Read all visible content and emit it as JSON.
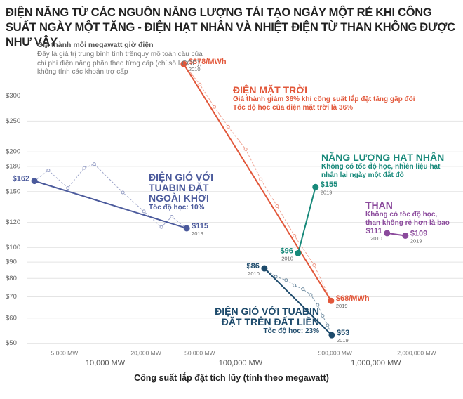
{
  "chart_data": {
    "type": "line",
    "title": "ĐIỆN NĂNG TỪ CÁC NGUỒN NĂNG LƯỢNG TÁI TẠO NGÀY MỘT RẺ KHI CÔNG SUẤT NGÀY MỘT TĂNG - ĐIỆN HẠT NHÂN VÀ NHIỆT ĐIỆN TỪ THAN KHÔNG ĐƯỢC NHƯ VẬY",
    "subtitle": "Giá thành mỗi megawatt giờ điện",
    "note": "Đây là giá trị trung bình tính trênquy mô toàn cầu của chi phí điện năng phân theo từng cấp (chỉ số LCOE), không tính các khoản trợ cấp",
    "x_label": "Công suất lắp đặt tích lũy (tính theo megawatt)",
    "log_x": true,
    "log_y": true,
    "grid": true,
    "xlim": [
      1670,
      4400000
    ],
    "ylim": [
      46,
      400
    ],
    "xticks": [
      {
        "value": 10000,
        "label": "10,000 MW"
      },
      {
        "value": 100000,
        "label": "100,000 MW"
      },
      {
        "value": 1000000,
        "label": "1,000,000 MW"
      }
    ],
    "xticks_minor": [
      {
        "value": 5000,
        "label": "5,000 MW"
      },
      {
        "value": 20000,
        "label": "20,000 MW"
      },
      {
        "value": 50000,
        "label": "50,000 MW"
      },
      {
        "value": 500000,
        "label": "500,000 MW"
      },
      {
        "value": 2000000,
        "label": "2,000,000 MW"
      }
    ],
    "yticks": [
      {
        "value": 50,
        "label": "$50"
      },
      {
        "value": 60,
        "label": "$60"
      },
      {
        "value": 70,
        "label": "$70"
      },
      {
        "value": 80,
        "label": "$80"
      },
      {
        "value": 90,
        "label": "$90"
      },
      {
        "value": 100,
        "label": "$100"
      },
      {
        "value": 120,
        "label": "$120"
      },
      {
        "value": 150,
        "label": "$150"
      },
      {
        "value": 180,
        "label": "$180"
      },
      {
        "value": 200,
        "label": "$200"
      },
      {
        "value": 250,
        "label": "$250"
      },
      {
        "value": 300,
        "label": "$300"
      }
    ],
    "series": [
      {
        "name": "ĐIỆN MẶT TRỜI",
        "color": "#e2573a",
        "notes": [
          "Giá thành giảm 36% khi công suất lắp đặt tăng gấp đôi",
          "Tốc độ học của điện mặt trời là 36%"
        ],
        "x": [
          38000,
          50000,
          64000,
          81000,
          109000,
          141000,
          186000,
          250000,
          350000,
          466000
        ],
        "values": [
          378,
          326,
          277,
          240,
          204,
          164,
          135,
          109,
          88,
          68
        ],
        "value_labels": [
          "$378/MWh",
          null,
          null,
          null,
          null,
          null,
          null,
          null,
          null,
          "$68/MWh"
        ],
        "years": [
          "2010",
          null,
          null,
          null,
          null,
          null,
          null,
          null,
          null,
          "2019"
        ]
      },
      {
        "name": "NĂNG LƯỢNG HẠT NHÂN",
        "color": "#17897a",
        "notes": [
          "Không có tốc độ học, nhiên liệu hạt nhân lại ngày một đắt đỏ"
        ],
        "x": [
          266000,
          358000
        ],
        "values": [
          96,
          155
        ],
        "value_labels": [
          "$96",
          "$155"
        ],
        "years": [
          "2010",
          "2019"
        ]
      },
      {
        "name": "ĐIỆN GIÓ VỚI TUABIN ĐẶT NGOÀI KHƠI",
        "color": "#4b5a9c",
        "notes": [
          "Tốc độ học: 10%"
        ],
        "x": [
          3000,
          3800,
          5300,
          7000,
          8300,
          13500,
          19300,
          26000,
          31000,
          40000
        ],
        "values": [
          162,
          175,
          154,
          178,
          183,
          149,
          130,
          116,
          125,
          115
        ],
        "value_labels": [
          "$162",
          null,
          null,
          null,
          null,
          null,
          null,
          null,
          null,
          "$115"
        ],
        "years": [
          null,
          null,
          null,
          null,
          null,
          null,
          null,
          null,
          null,
          "2019"
        ]
      },
      {
        "name": "THAN",
        "color": "#8b4a9c",
        "notes": [
          "Không có tốc độ học, than không rẻ hơn là bao"
        ],
        "x": [
          1210000,
          1650000
        ],
        "values": [
          111,
          109
        ],
        "value_labels": [
          "$111",
          "$109"
        ],
        "years": [
          "2010",
          "2019"
        ]
      },
      {
        "name": "ĐIỆN GIÓ VỚI TUABIN ĐẶT TRÊN ĐẤT LIỀN",
        "color": "#1d4a6b",
        "notes": [
          "Tốc độ học: 23%"
        ],
        "x": [
          150000,
          182000,
          217000,
          250000,
          289000,
          330000,
          371000,
          404000,
          439000,
          472000
        ],
        "values": [
          86,
          81,
          79,
          76,
          74,
          71,
          66,
          61,
          57,
          53
        ],
        "value_labels": [
          "$86",
          null,
          null,
          null,
          null,
          null,
          null,
          null,
          null,
          "$53"
        ],
        "years": [
          "2010",
          null,
          null,
          null,
          null,
          null,
          null,
          null,
          null,
          "2019"
        ]
      }
    ]
  }
}
